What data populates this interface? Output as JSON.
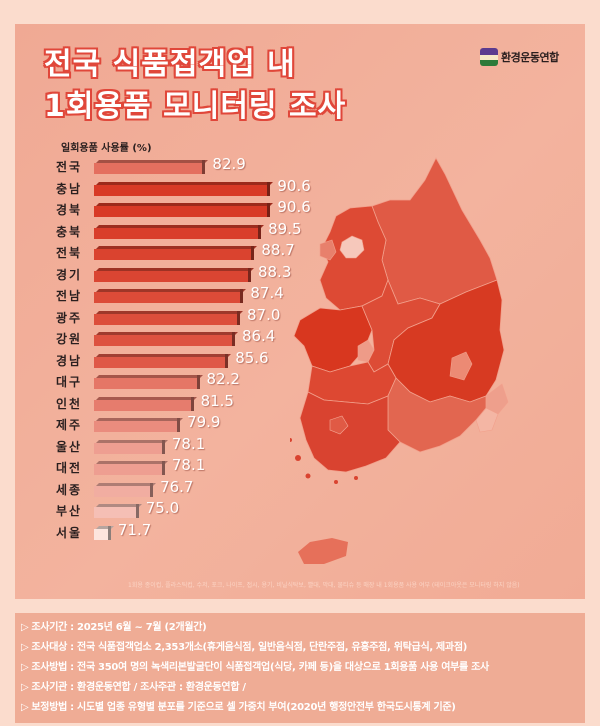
{
  "header": {
    "title_line1": "전국 식품접객업 내",
    "title_line2": "1회용품 모니터링 조사",
    "logo_text": "환경운동연합"
  },
  "colors": {
    "background": "#fbdccd",
    "panel": "#f2ae98",
    "title_outline": "#e0473a",
    "bar_dark": "#d83a26",
    "bar_light": "#fde5de"
  },
  "chart_data": {
    "type": "bar",
    "orientation": "horizontal",
    "title": "일회용품 사용률 (%)",
    "xlabel": "",
    "ylabel": "일회용품 사용률 (%)",
    "categories": [
      "전국",
      "충남",
      "경북",
      "충북",
      "전북",
      "경기",
      "전남",
      "광주",
      "강원",
      "경남",
      "대구",
      "인천",
      "제주",
      "울산",
      "대전",
      "세종",
      "부산",
      "서울"
    ],
    "values": [
      82.9,
      90.6,
      90.6,
      89.5,
      88.7,
      88.3,
      87.4,
      87.0,
      86.4,
      85.6,
      82.2,
      81.5,
      79.9,
      78.1,
      78.1,
      76.7,
      75.0,
      71.7
    ],
    "value_labels": [
      "82.9",
      "90.6",
      "90.6",
      "89.5",
      "88.7",
      "88.3",
      "87.4",
      "87.0",
      "86.4",
      "85.6",
      "82.2",
      "81.5",
      "79.9",
      "78.1",
      "78.1",
      "76.7",
      "75.0",
      "71.7"
    ],
    "grid": false,
    "legend": "none",
    "annotation": "choropleth map of South Korea shaded by the same regional values"
  },
  "footnote": "1회용 종이컵, 플라스틱컵, 수저, 포크, 나이프, 접시, 용기, 비닐식탁보, 빨대, 막대, 물티슈 등 매장 내 1회용품 사용 여부 (테이크아웃은 모니터링 하지 않음)",
  "info": {
    "arrow": "▷",
    "lines": [
      "조사기간 : 2025년 6월 ~ 7월 (2개월간)",
      "조사대상 : 전국 식품접객업소 2,353개소(휴게음식점, 일반음식점, 단란주점, 유흥주점, 위탁급식, 제과점)",
      "조사방법 : 전국 350여 명의 녹색리본발굴단이 식품접객업(식당, 카페 등)을 대상으로 1회용품 사용 여부를 조사",
      "조사기관 : 환경운동연합 / 조사주관 : 환경운동연합 /",
      "보정방법 : 시도별 업종 유형별 분포를 기준으로 셀 가중치 부여(2020년 행정안전부 한국도시통계 기준)"
    ]
  }
}
